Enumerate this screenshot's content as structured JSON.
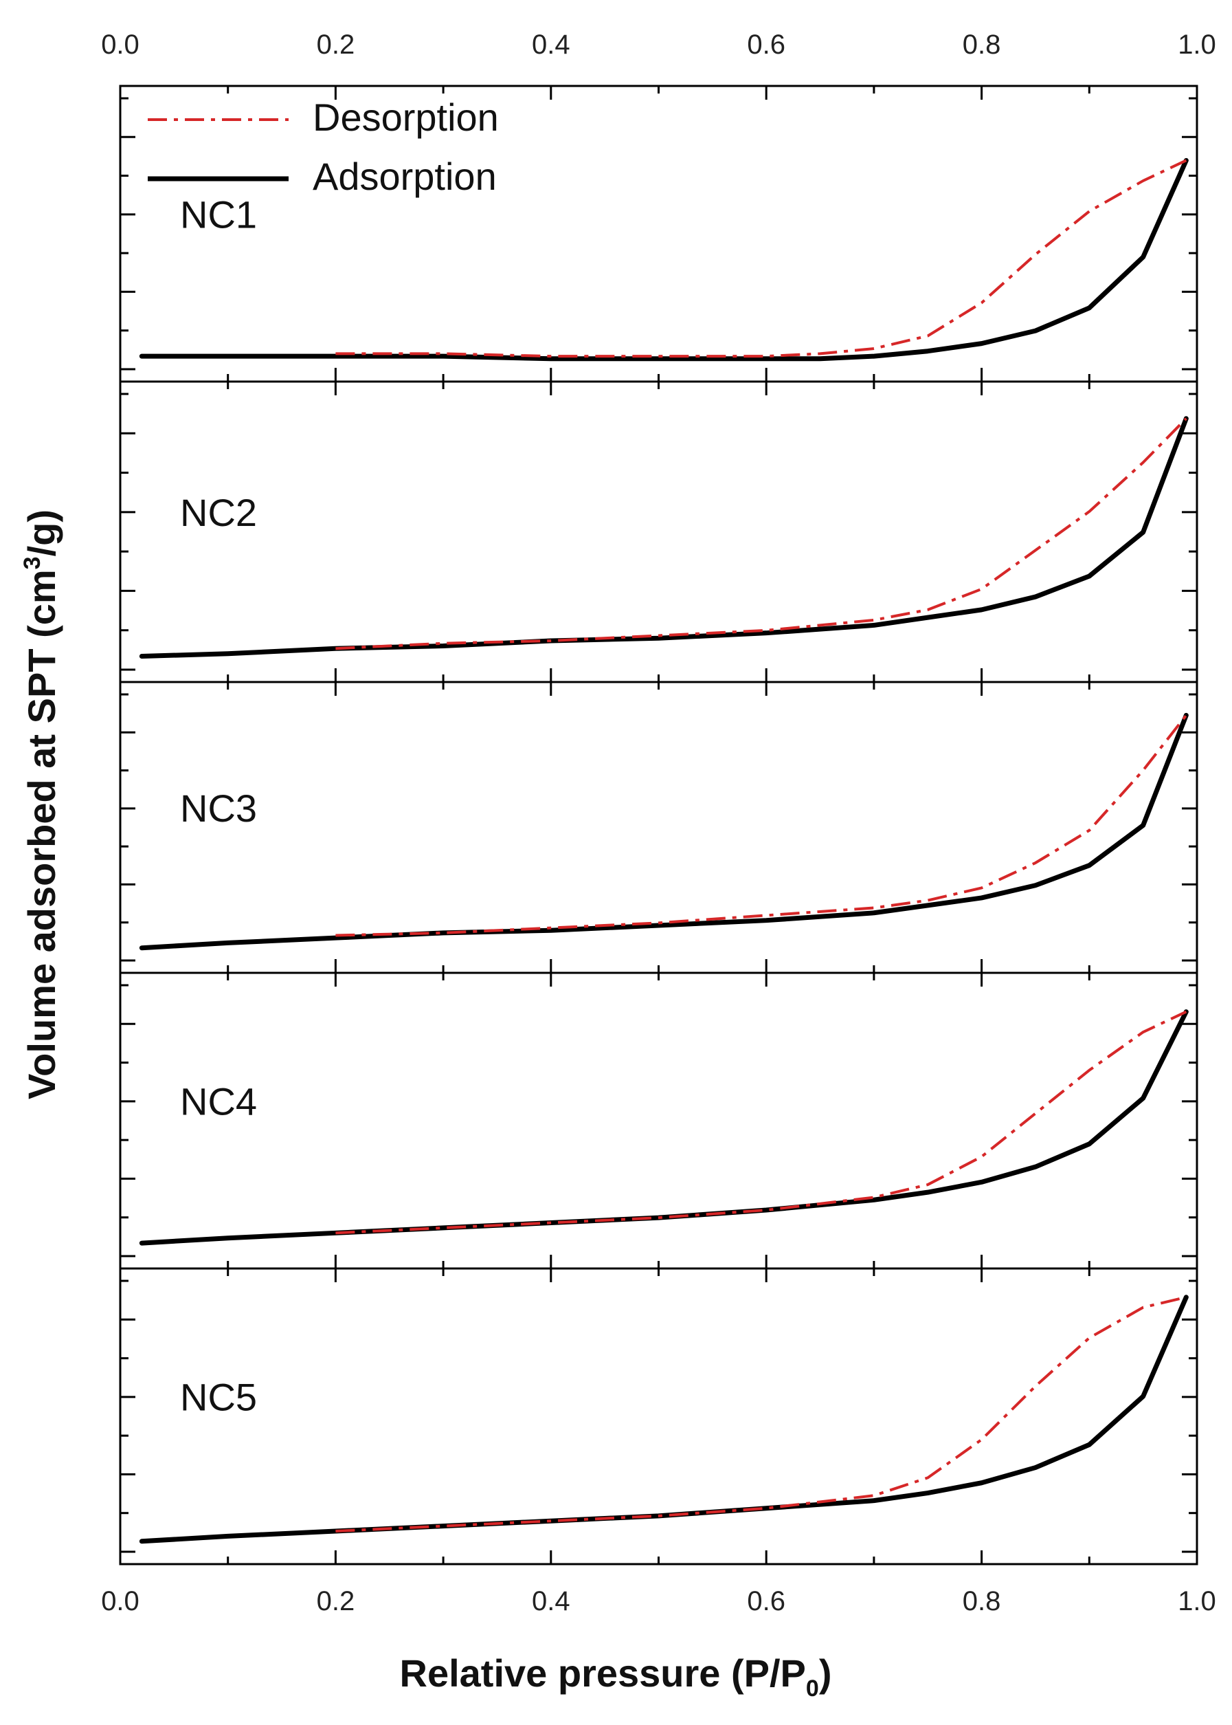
{
  "chart_data": {
    "type": "line",
    "title": "",
    "xlabel": {
      "main": "Relative pressure (P/P",
      "sub": "0",
      "end": ")"
    },
    "ylabel": {
      "main": "Volume adsorbed at SPT (cm",
      "sup": "3",
      "end": "/g)"
    },
    "xlim": [
      0.0,
      1.0
    ],
    "x_ticks": [
      "0.0",
      "0.2",
      "0.4",
      "0.6",
      "0.8",
      "1.0"
    ],
    "x_tick_values": [
      0.0,
      0.2,
      0.4,
      0.6,
      0.8,
      1.0
    ],
    "ylim": [
      0,
      1
    ],
    "y_ticks_note": "unlabeled",
    "legend": {
      "position": "top-left of first panel",
      "entries": [
        {
          "label": "Desorption",
          "color": "#d62728",
          "style": "dash-dot"
        },
        {
          "label": "Adsorption",
          "color": "#000000",
          "style": "solid"
        }
      ]
    },
    "panels": [
      {
        "label": "NC1",
        "adsorption": {
          "x": [
            0.02,
            0.1,
            0.2,
            0.3,
            0.4,
            0.5,
            0.6,
            0.65,
            0.7,
            0.75,
            0.8,
            0.85,
            0.9,
            0.95,
            0.99
          ],
          "y": [
            0.03,
            0.03,
            0.03,
            0.03,
            0.02,
            0.02,
            0.02,
            0.02,
            0.03,
            0.05,
            0.08,
            0.13,
            0.22,
            0.42,
            0.8
          ]
        },
        "desorption": {
          "x": [
            0.2,
            0.3,
            0.4,
            0.5,
            0.6,
            0.65,
            0.7,
            0.75,
            0.8,
            0.85,
            0.9,
            0.95,
            0.99
          ],
          "y": [
            0.04,
            0.04,
            0.03,
            0.03,
            0.03,
            0.04,
            0.06,
            0.11,
            0.24,
            0.43,
            0.6,
            0.72,
            0.8
          ]
        }
      },
      {
        "label": "NC2",
        "adsorption": {
          "x": [
            0.02,
            0.1,
            0.2,
            0.3,
            0.4,
            0.5,
            0.6,
            0.7,
            0.75,
            0.8,
            0.85,
            0.9,
            0.95,
            0.99
          ],
          "y": [
            0.03,
            0.04,
            0.06,
            0.07,
            0.09,
            0.1,
            0.12,
            0.15,
            0.18,
            0.21,
            0.26,
            0.34,
            0.51,
            0.95
          ]
        },
        "desorption": {
          "x": [
            0.2,
            0.3,
            0.4,
            0.5,
            0.6,
            0.7,
            0.75,
            0.8,
            0.85,
            0.9,
            0.95,
            0.99
          ],
          "y": [
            0.06,
            0.08,
            0.09,
            0.11,
            0.13,
            0.17,
            0.21,
            0.29,
            0.44,
            0.59,
            0.78,
            0.95
          ]
        }
      },
      {
        "label": "NC3",
        "adsorption": {
          "x": [
            0.02,
            0.1,
            0.2,
            0.3,
            0.4,
            0.5,
            0.6,
            0.7,
            0.75,
            0.8,
            0.85,
            0.9,
            0.95,
            0.99
          ],
          "y": [
            0.03,
            0.05,
            0.07,
            0.09,
            0.1,
            0.12,
            0.14,
            0.17,
            0.2,
            0.23,
            0.28,
            0.36,
            0.52,
            0.96
          ]
        },
        "desorption": {
          "x": [
            0.2,
            0.3,
            0.4,
            0.5,
            0.6,
            0.7,
            0.75,
            0.8,
            0.85,
            0.9,
            0.95,
            0.99
          ],
          "y": [
            0.08,
            0.09,
            0.11,
            0.13,
            0.16,
            0.19,
            0.22,
            0.27,
            0.37,
            0.5,
            0.74,
            0.96
          ]
        }
      },
      {
        "label": "NC4",
        "adsorption": {
          "x": [
            0.02,
            0.1,
            0.2,
            0.3,
            0.4,
            0.5,
            0.6,
            0.7,
            0.75,
            0.8,
            0.85,
            0.9,
            0.95,
            0.99
          ],
          "y": [
            0.03,
            0.05,
            0.07,
            0.09,
            0.11,
            0.13,
            0.16,
            0.2,
            0.23,
            0.27,
            0.33,
            0.42,
            0.6,
            0.94
          ]
        },
        "desorption": {
          "x": [
            0.2,
            0.3,
            0.4,
            0.5,
            0.6,
            0.7,
            0.75,
            0.8,
            0.85,
            0.9,
            0.95,
            0.99
          ],
          "y": [
            0.07,
            0.09,
            0.11,
            0.13,
            0.16,
            0.21,
            0.26,
            0.37,
            0.54,
            0.71,
            0.86,
            0.94
          ]
        }
      },
      {
        "label": "NC5",
        "adsorption": {
          "x": [
            0.02,
            0.1,
            0.2,
            0.3,
            0.4,
            0.5,
            0.6,
            0.7,
            0.75,
            0.8,
            0.85,
            0.9,
            0.95,
            0.99
          ],
          "y": [
            0.02,
            0.04,
            0.06,
            0.08,
            0.1,
            0.12,
            0.15,
            0.18,
            0.21,
            0.25,
            0.31,
            0.4,
            0.59,
            0.98
          ]
        },
        "desorption": {
          "x": [
            0.2,
            0.3,
            0.4,
            0.5,
            0.6,
            0.7,
            0.75,
            0.8,
            0.85,
            0.9,
            0.95,
            0.99
          ],
          "y": [
            0.06,
            0.08,
            0.1,
            0.12,
            0.15,
            0.2,
            0.27,
            0.42,
            0.63,
            0.82,
            0.94,
            0.98
          ]
        }
      }
    ]
  }
}
